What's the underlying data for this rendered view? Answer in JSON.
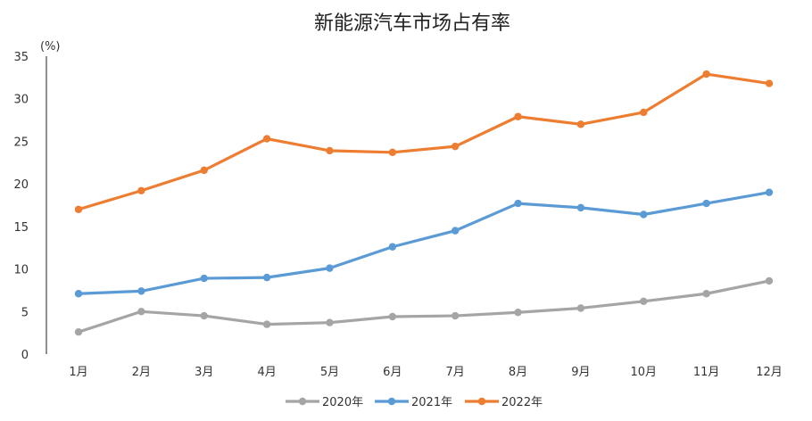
{
  "chart_data": {
    "type": "line",
    "title": "新能源汽车市场占有率",
    "ylabel": "(%)",
    "xlabel": "",
    "categories": [
      "1月",
      "2月",
      "3月",
      "4月",
      "5月",
      "6月",
      "7月",
      "8月",
      "9月",
      "10月",
      "11月",
      "12月"
    ],
    "ylim": [
      0,
      35
    ],
    "yticks": [
      0,
      5,
      10,
      15,
      20,
      25,
      30,
      35
    ],
    "grid": false,
    "legend_position": "bottom",
    "series": [
      {
        "name": "2020年",
        "color": "#A5A5A5",
        "values": [
          2.6,
          5.0,
          4.5,
          3.5,
          3.7,
          4.4,
          4.5,
          4.9,
          5.4,
          6.2,
          7.1,
          8.6
        ]
      },
      {
        "name": "2021年",
        "color": "#5B9BD5",
        "values": [
          7.1,
          7.4,
          8.9,
          9.0,
          10.1,
          12.6,
          14.5,
          17.7,
          17.2,
          16.4,
          17.7,
          19.0
        ]
      },
      {
        "name": "2022年",
        "color": "#ED7D31",
        "values": [
          17.0,
          19.2,
          21.6,
          25.3,
          23.9,
          23.7,
          24.4,
          27.9,
          27.0,
          28.4,
          32.9,
          31.8
        ]
      }
    ]
  }
}
